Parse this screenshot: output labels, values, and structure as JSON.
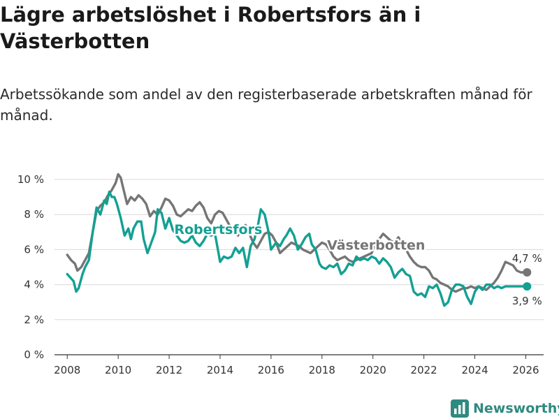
{
  "chart_data": {
    "type": "line",
    "title": "Lägre arbetslöshet i Robertsfors än i Västerbotten",
    "subtitle": "Arbetssökande som andel av den registerbaserade arbetskraften månad för månad.",
    "xlabel": "",
    "ylabel": "",
    "xlim": [
      2007.5,
      2026.7
    ],
    "ylim": [
      0,
      10
    ],
    "x_ticks": [
      2008,
      2010,
      2012,
      2014,
      2016,
      2018,
      2020,
      2022,
      2024,
      2026
    ],
    "x_tick_labels": [
      "2008",
      "2010",
      "2012",
      "2014",
      "2016",
      "2018",
      "2020",
      "2022",
      "2024",
      "2026"
    ],
    "y_ticks": [
      0,
      2,
      4,
      6,
      8,
      10
    ],
    "y_tick_labels": [
      "0 %",
      "2 %",
      "4 %",
      "6 %",
      "8 %",
      "10 %"
    ],
    "grid": "horizontal",
    "colors": {
      "Västerbotten": "#757575",
      "Robertsfors": "#13a093",
      "grid": "#d9d9d9",
      "axis": "#333333"
    },
    "series": [
      {
        "name": "Robertsfors",
        "x": [
          2008.0,
          2008.25,
          2008.35,
          2008.45,
          2008.6,
          2008.7,
          2008.85,
          2009.0,
          2009.15,
          2009.3,
          2009.45,
          2009.55,
          2009.65,
          2009.75,
          2009.85,
          2009.95,
          2010.1,
          2010.25,
          2010.4,
          2010.5,
          2010.6,
          2010.75,
          2010.9,
          2011.0,
          2011.15,
          2011.3,
          2011.45,
          2011.55,
          2011.7,
          2011.85,
          2012.0,
          2012.15,
          2012.3,
          2012.45,
          2012.6,
          2012.75,
          2012.9,
          2013.05,
          2013.2,
          2013.35,
          2013.5,
          2013.65,
          2013.8,
          2014.0,
          2014.15,
          2014.3,
          2014.45,
          2014.6,
          2014.75,
          2014.9,
          2015.05,
          2015.2,
          2015.35,
          2015.5,
          2015.6,
          2015.75,
          2015.9,
          2016.0,
          2016.1,
          2016.2,
          2016.35,
          2016.5,
          2016.6,
          2016.75,
          2016.9,
          2017.05,
          2017.2,
          2017.35,
          2017.5,
          2017.6,
          2017.75,
          2017.9,
          2018.0,
          2018.15,
          2018.3,
          2018.45,
          2018.6,
          2018.75,
          2018.9,
          2019.05,
          2019.2,
          2019.35,
          2019.5,
          2019.65,
          2019.8,
          2019.95,
          2020.1,
          2020.25,
          2020.4,
          2020.55,
          2020.7,
          2020.85,
          2021.0,
          2021.15,
          2021.3,
          2021.45,
          2021.6,
          2021.75,
          2021.9,
          2022.05,
          2022.2,
          2022.35,
          2022.5,
          2022.65,
          2022.8,
          2022.95,
          2023.1,
          2023.25,
          2023.4,
          2023.55,
          2023.7,
          2023.85,
          2024.0,
          2024.15,
          2024.3,
          2024.45,
          2024.6,
          2024.75,
          2024.9,
          2025.05,
          2025.2,
          2025.35,
          2025.5,
          2025.65,
          2025.8,
          2025.95,
          2026.05
        ],
        "values": [
          4.6,
          4.2,
          3.6,
          3.8,
          4.6,
          5.0,
          5.4,
          7.0,
          8.4,
          8.0,
          8.8,
          8.6,
          9.3,
          9.0,
          9.0,
          8.6,
          7.8,
          6.8,
          7.2,
          6.6,
          7.2,
          7.6,
          7.6,
          6.6,
          5.8,
          6.4,
          7.0,
          8.3,
          8.1,
          7.2,
          7.8,
          7.1,
          6.8,
          6.5,
          6.4,
          6.5,
          6.8,
          6.4,
          6.2,
          6.5,
          6.9,
          6.8,
          6.9,
          5.3,
          5.6,
          5.5,
          5.6,
          6.1,
          5.8,
          6.1,
          5.0,
          6.2,
          6.6,
          7.5,
          8.3,
          8.0,
          7.0,
          6.0,
          6.2,
          6.4,
          6.2,
          6.6,
          6.8,
          7.2,
          6.8,
          6.0,
          6.3,
          6.7,
          6.9,
          6.3,
          6.0,
          5.2,
          5.0,
          4.9,
          5.1,
          5.0,
          5.2,
          4.6,
          4.8,
          5.2,
          5.1,
          5.6,
          5.4,
          5.5,
          5.4,
          5.6,
          5.5,
          5.2,
          5.5,
          5.3,
          5.0,
          4.4,
          4.7,
          4.9,
          4.6,
          4.5,
          3.6,
          3.4,
          3.5,
          3.3,
          3.9,
          3.8,
          4.0,
          3.5,
          2.8,
          3.0,
          3.7,
          4.0,
          4.0,
          3.9,
          3.3,
          2.9,
          3.6,
          3.9,
          3.7,
          4.0,
          4.0,
          3.8,
          3.9,
          3.8,
          3.9,
          3.9,
          3.9,
          3.9,
          3.9,
          3.9,
          3.9
        ]
      },
      {
        "name": "Västerbotten",
        "x": [
          2008.0,
          2008.15,
          2008.3,
          2008.4,
          2008.55,
          2008.7,
          2008.85,
          2009.0,
          2009.15,
          2009.3,
          2009.45,
          2009.6,
          2009.75,
          2009.9,
          2010.0,
          2010.1,
          2010.2,
          2010.35,
          2010.5,
          2010.65,
          2010.8,
          2010.95,
          2011.1,
          2011.25,
          2011.4,
          2011.55,
          2011.7,
          2011.85,
          2012.0,
          2012.15,
          2012.3,
          2012.45,
          2012.6,
          2012.75,
          2012.9,
          2013.05,
          2013.2,
          2013.35,
          2013.5,
          2013.65,
          2013.8,
          2013.95,
          2014.1,
          2014.25,
          2014.4,
          2014.55,
          2014.7,
          2014.85,
          2015.0,
          2015.15,
          2015.3,
          2015.45,
          2015.6,
          2015.75,
          2015.9,
          2016.05,
          2016.2,
          2016.35,
          2016.5,
          2016.65,
          2016.8,
          2016.95,
          2017.1,
          2017.25,
          2017.4,
          2017.55,
          2017.7,
          2017.85,
          2018.0,
          2018.15,
          2018.3,
          2018.45,
          2018.6,
          2018.75,
          2018.9,
          2019.05,
          2019.2,
          2019.35,
          2019.5,
          2019.65,
          2019.8,
          2019.95,
          2020.1,
          2020.25,
          2020.4,
          2020.55,
          2020.7,
          2020.85,
          2021.0,
          2021.15,
          2021.3,
          2021.45,
          2021.6,
          2021.75,
          2021.9,
          2022.05,
          2022.2,
          2022.35,
          2022.5,
          2022.65,
          2022.8,
          2022.95,
          2023.1,
          2023.25,
          2023.4,
          2023.55,
          2023.7,
          2023.85,
          2024.0,
          2024.15,
          2024.3,
          2024.45,
          2024.6,
          2024.75,
          2024.9,
          2025.05,
          2025.2,
          2025.35,
          2025.5,
          2025.65,
          2025.8,
          2025.95,
          2026.05
        ],
        "values": [
          5.7,
          5.4,
          5.2,
          4.8,
          5.0,
          5.4,
          5.8,
          7.0,
          8.2,
          8.5,
          8.7,
          9.1,
          9.4,
          9.8,
          10.3,
          10.1,
          9.5,
          8.6,
          9.0,
          8.8,
          9.1,
          8.9,
          8.6,
          7.9,
          8.2,
          8.0,
          8.4,
          8.9,
          8.8,
          8.5,
          8.0,
          7.9,
          8.1,
          8.3,
          8.2,
          8.5,
          8.7,
          8.4,
          7.8,
          7.5,
          8.0,
          8.2,
          8.1,
          7.7,
          7.3,
          7.0,
          6.8,
          7.2,
          7.4,
          6.9,
          6.4,
          6.1,
          6.5,
          6.9,
          7.0,
          6.8,
          6.4,
          5.8,
          6.0,
          6.2,
          6.4,
          6.3,
          6.2,
          6.0,
          5.9,
          5.8,
          6.0,
          6.2,
          6.4,
          6.3,
          6.0,
          5.6,
          5.4,
          5.5,
          5.6,
          5.4,
          5.3,
          5.4,
          5.5,
          5.6,
          5.7,
          5.8,
          6.4,
          6.6,
          6.9,
          6.7,
          6.5,
          6.4,
          6.7,
          6.3,
          6.0,
          5.6,
          5.3,
          5.1,
          5.0,
          5.0,
          4.8,
          4.4,
          4.3,
          4.1,
          4.0,
          3.9,
          3.7,
          3.6,
          3.7,
          3.8,
          3.8,
          3.9,
          3.8,
          3.9,
          3.8,
          3.7,
          3.9,
          4.1,
          4.4,
          4.8,
          5.3,
          5.2,
          5.1,
          4.8,
          4.7,
          4.7,
          4.7
        ]
      }
    ],
    "annotations": [
      {
        "text": "Robertsfors",
        "series": "Robertsfors",
        "x": 2012.2,
        "y": 6.9
      },
      {
        "text": "Västerbotten",
        "series": "Västerbotten",
        "x": 2018.2,
        "y": 6.0
      },
      {
        "text": "4,7 %",
        "series": "Västerbotten",
        "x": 2026.05,
        "y": 4.7
      },
      {
        "text": "3,9 %",
        "series": "Robertsfors",
        "x": 2026.05,
        "y": 3.9
      }
    ]
  },
  "brand": {
    "name": "Newsworthy",
    "color": "#2f8a80"
  }
}
